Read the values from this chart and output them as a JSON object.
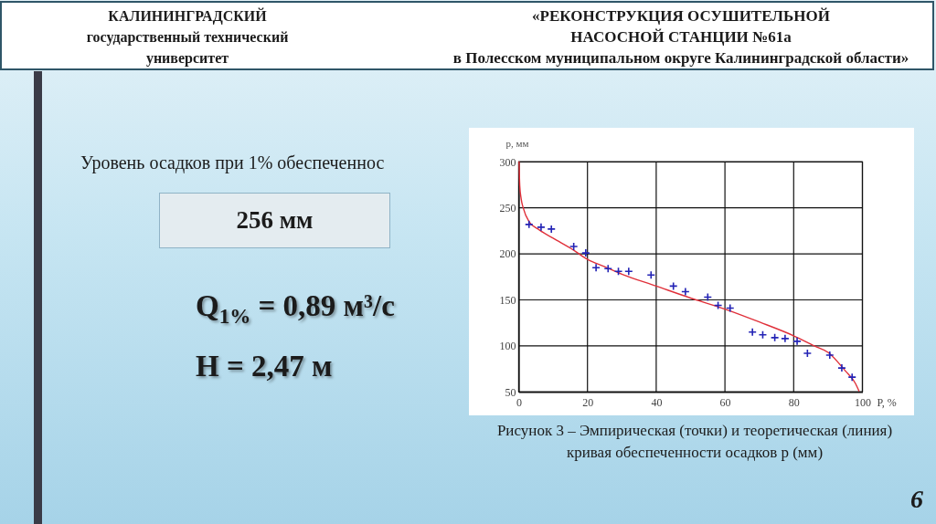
{
  "chart_data": {
    "type": "scatter",
    "title": "«РЕКОНСТРУКЦИЯ ОСУШИТЕЛЬНОЙ\nНАСОСНОЙ СТАНЦИИ №61а\nв Полесском муниципальном округе Калининградской области»",
    "xlabel": "P, %",
    "ylabel": "p, мм",
    "xlim": [
      0,
      100
    ],
    "ylim": [
      50,
      300
    ],
    "xticks": [
      0,
      20,
      40,
      60,
      80,
      100
    ],
    "yticks": [
      50,
      100,
      150,
      200,
      250,
      300
    ],
    "grid": true,
    "series": [
      {
        "type": "scatter",
        "color": "#2323b5",
        "marker": "cross",
        "x": [
          3,
          6.5,
          9.5,
          16,
          19.5,
          22.5,
          26,
          29,
          32,
          38.5,
          45,
          48.5,
          55,
          58,
          61.5,
          68,
          71,
          74.5,
          77.5,
          81,
          84,
          90.5,
          94,
          97
        ],
        "values": [
          232,
          229,
          227,
          208,
          201,
          185,
          184,
          181,
          181,
          177,
          165,
          159,
          153,
          144,
          141,
          115,
          112,
          109,
          108,
          105,
          92,
          90,
          76,
          66
        ]
      },
      {
        "type": "line",
        "color": "#e0303a",
        "marker": "none",
        "line_style": "solid",
        "x": [
          0.1,
          0.3,
          0.7,
          1.3,
          3,
          6,
          10,
          16,
          20,
          25,
          30,
          40,
          50,
          60,
          70,
          80,
          86,
          90,
          95,
          98,
          99
        ],
        "values": [
          300,
          274,
          260,
          250,
          235,
          226,
          217,
          204,
          194,
          186,
          178,
          165,
          152,
          140,
          126,
          111,
          100,
          93,
          73,
          59,
          51
        ]
      }
    ],
    "annotations": [
      "КАЛИНИНГРАДСКИЙ\nгосударственный технический\nуниверситет",
      "Уровень осадков при 1% обеспеченнос",
      "256 мм",
      "Q$_{1%}$ = 0,89 м³/с",
      "H = 2,47 м",
      "Рисунок 3 – Эмпирическая (точки) и теоретическая (линия)\nкривая обеспеченности осадков p (мм)",
      "6"
    ]
  }
}
